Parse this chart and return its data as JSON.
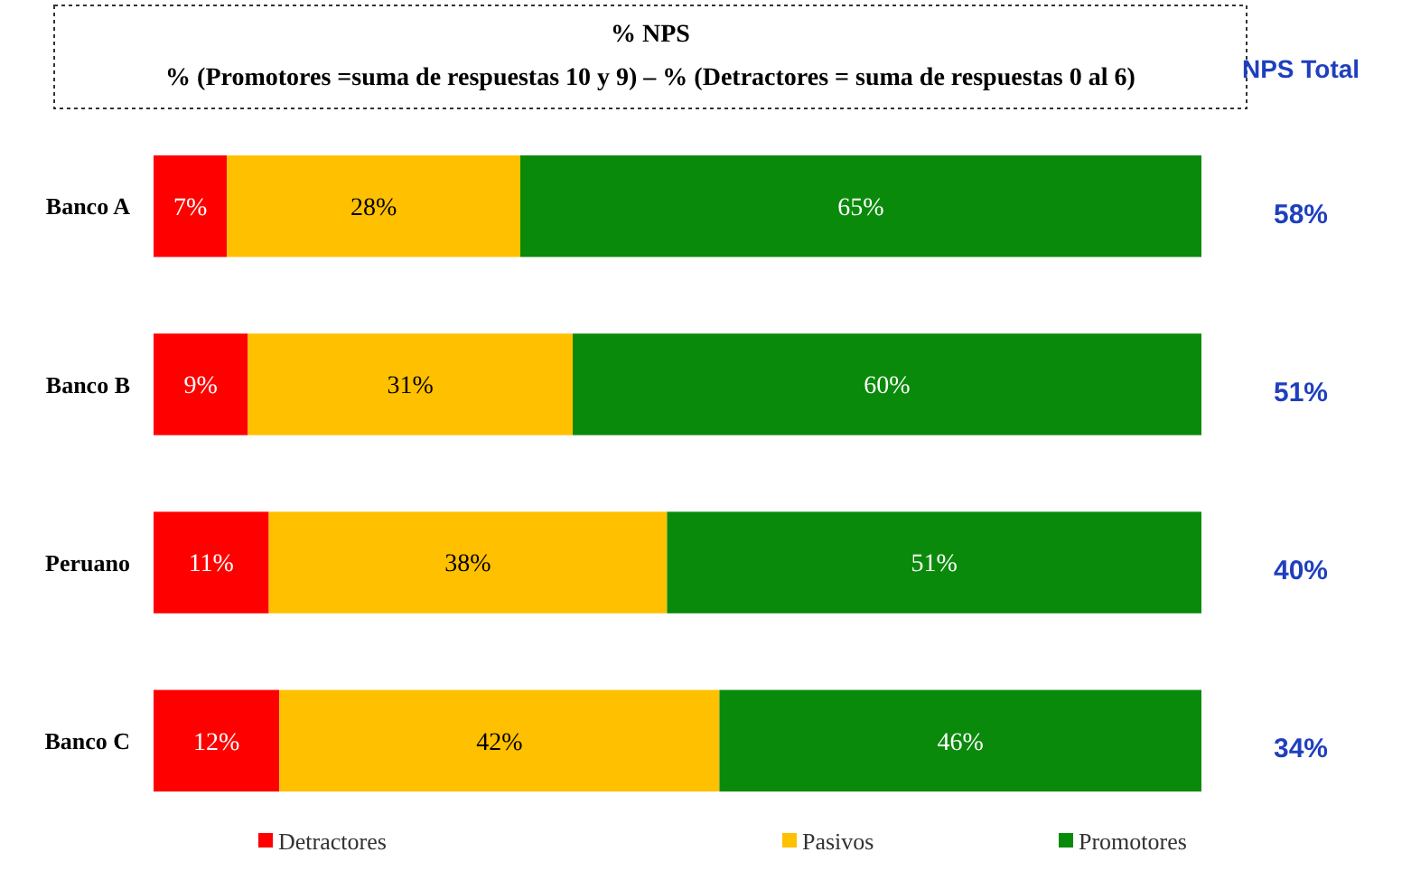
{
  "chart_data": {
    "type": "bar",
    "orientation": "horizontal",
    "stacked": true,
    "title": "% NPS",
    "subtitle": "% (Promotores =suma de respuestas 10 y 9) – % (Detractores = suma de respuestas 0 al 6)",
    "categories": [
      "Banco A",
      "Banco B",
      "Peruano",
      "Banco C"
    ],
    "series": [
      {
        "name": "Detractores",
        "color": "#ff0000",
        "values": [
          7,
          9,
          11,
          12
        ],
        "value_labels": [
          "7%",
          "9%",
          "11%",
          "12%"
        ]
      },
      {
        "name": "Pasivos",
        "color": "#ffc000",
        "values": [
          28,
          31,
          38,
          42
        ],
        "value_labels": [
          "28%",
          "31%",
          "38%",
          "42%"
        ]
      },
      {
        "name": "Promotores",
        "color": "#0a8a0a",
        "values": [
          65,
          60,
          51,
          46
        ],
        "value_labels": [
          "65%",
          "60%",
          "51%",
          "46%"
        ]
      }
    ],
    "tick_labels": "y",
    "legend": "bottom",
    "annotations": [
      "NPS Total",
      "58%",
      "51%",
      "40%",
      "34%"
    ]
  }
}
